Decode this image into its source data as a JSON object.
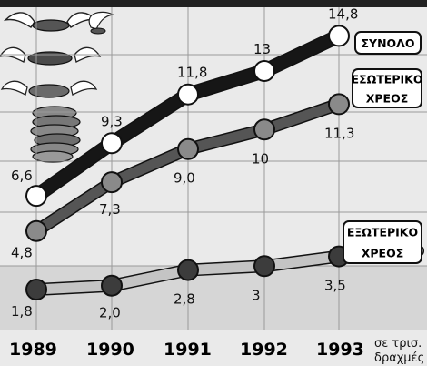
{
  "chart_data": {
    "type": "line",
    "title": "",
    "categories": [
      "1989",
      "1990",
      "1991",
      "1992",
      "1993"
    ],
    "unit_label": [
      "σε τρισ.",
      "δραχμές"
    ],
    "ylim": [
      0,
      16
    ],
    "series": [
      {
        "name": "ΣΥΝΟΛΟ",
        "label_lines": [
          "ΣΥΝΟΛΟ"
        ],
        "values": [
          6.6,
          9.3,
          11.8,
          13,
          14.8
        ],
        "value_labels": [
          "6,6",
          "9,3",
          "11,8",
          "13",
          "14,8"
        ],
        "line_color": "#161616",
        "marker_color": "#ffffff"
      },
      {
        "name": "ΕΣΩΤΕΡΙΚΟ ΧΡΕΟΣ",
        "label_lines": [
          "ΕΣΩΤΕΡΙΚΟ",
          "ΧΡΕΟΣ"
        ],
        "values": [
          4.8,
          7.3,
          9.0,
          10,
          11.3
        ],
        "value_labels": [
          "4,8",
          "7,3",
          "9,0",
          "10",
          "11,3"
        ],
        "line_color": "#555555",
        "marker_color": "#8a8a8a"
      },
      {
        "name": "ΕΞΩΤΕΡΙΚΟ ΧΡΕΟΣ",
        "label_lines": [
          "ΕΞΩΤΕΡΙΚΟ",
          "ΧΡΕΟΣ"
        ],
        "values": [
          1.8,
          2.0,
          2.8,
          3,
          3.5
        ],
        "value_labels": [
          "1,8",
          "2,0",
          "2,8",
          "3",
          "3,5"
        ],
        "line_color": "#c4c4c4",
        "marker_color": "#3c3c3c"
      }
    ],
    "grid": true,
    "colors": {
      "background": "#eaeaea",
      "band": "#d6d6d6",
      "grid": "#9a9a9a"
    }
  }
}
